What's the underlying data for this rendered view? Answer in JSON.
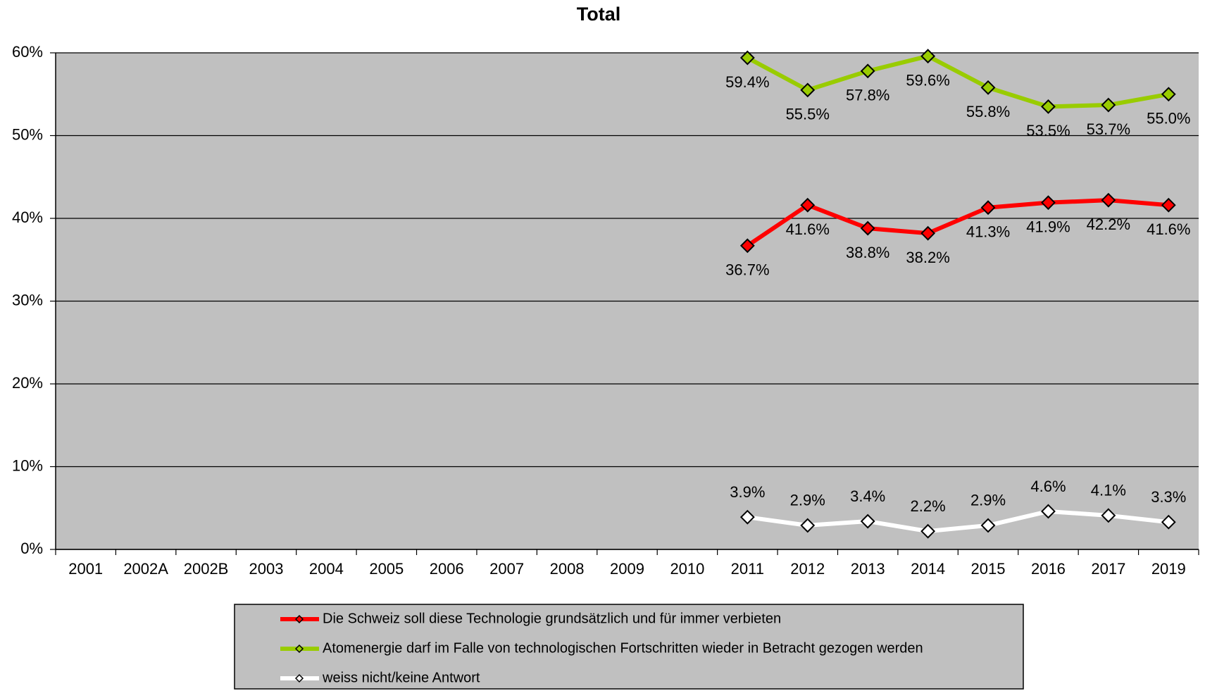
{
  "chart_data": {
    "type": "line",
    "title": "Total",
    "categories": [
      "2001",
      "2002A",
      "2002B",
      "2003",
      "2004",
      "2005",
      "2006",
      "2007",
      "2008",
      "2009",
      "2010",
      "2011",
      "2012",
      "2013",
      "2014",
      "2015",
      "2016",
      "2017",
      "2019"
    ],
    "series": [
      {
        "name": "Die Schweiz soll diese Technologie grundsätzlich und für immer verbieten",
        "color": "#ff0000",
        "values": [
          null,
          null,
          null,
          null,
          null,
          null,
          null,
          null,
          null,
          null,
          null,
          36.7,
          41.6,
          38.8,
          38.2,
          41.3,
          41.9,
          42.2,
          41.6
        ],
        "value_labels": [
          null,
          null,
          null,
          null,
          null,
          null,
          null,
          null,
          null,
          null,
          null,
          "36.7%",
          "41.6%",
          "38.8%",
          "38.2%",
          "41.3%",
          "41.9%",
          "42.2%",
          "41.6%"
        ]
      },
      {
        "name": "Atomenergie darf im Falle von technologischen Fortschritten wieder in Betracht gezogen werden",
        "color": "#99cc00",
        "values": [
          null,
          null,
          null,
          null,
          null,
          null,
          null,
          null,
          null,
          null,
          null,
          59.4,
          55.5,
          57.8,
          59.6,
          55.8,
          53.5,
          53.7,
          55.0
        ],
        "value_labels": [
          null,
          null,
          null,
          null,
          null,
          null,
          null,
          null,
          null,
          null,
          null,
          "59.4%",
          "55.5%",
          "57.8%",
          "59.6%",
          "55.8%",
          "53.5%",
          "53.7%",
          "55.0%"
        ]
      },
      {
        "name": "weiss nicht/keine Antwort",
        "color": "#ffffff",
        "values": [
          null,
          null,
          null,
          null,
          null,
          null,
          null,
          null,
          null,
          null,
          null,
          3.9,
          2.9,
          3.4,
          2.2,
          2.9,
          4.6,
          4.1,
          3.3
        ],
        "value_labels": [
          null,
          null,
          null,
          null,
          null,
          null,
          null,
          null,
          null,
          null,
          null,
          "3.9%",
          "2.9%",
          "3.4%",
          "2.2%",
          "2.9%",
          "4.6%",
          "4.1%",
          "3.3%"
        ]
      }
    ],
    "ylim": [
      0,
      60
    ],
    "yticks": [
      {
        "value": 0,
        "label": "0%"
      },
      {
        "value": 10,
        "label": "10%"
      },
      {
        "value": 20,
        "label": "20%"
      },
      {
        "value": 30,
        "label": "30%"
      },
      {
        "value": 40,
        "label": "40%"
      },
      {
        "value": 50,
        "label": "50%"
      },
      {
        "value": 60,
        "label": "60%"
      }
    ],
    "grid": true,
    "legend": "bottom",
    "background": "#c0c0c0"
  }
}
